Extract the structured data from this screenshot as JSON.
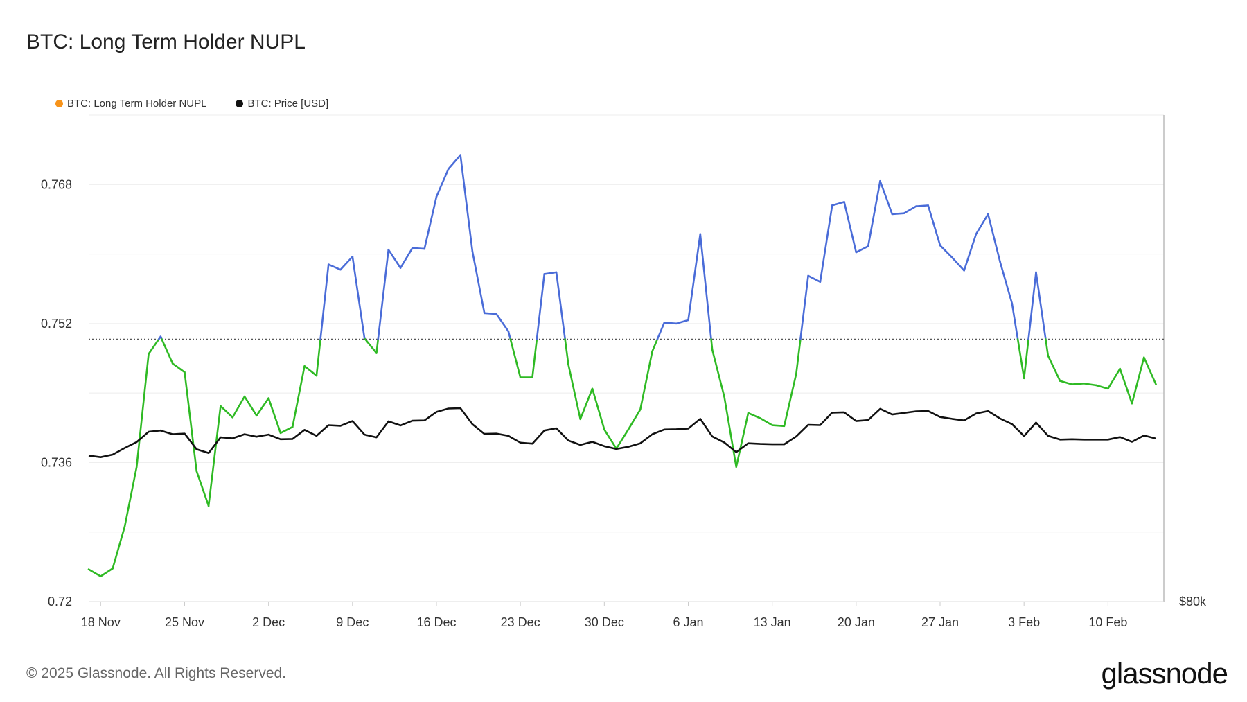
{
  "header": {
    "title": "BTC: Long Term Holder NUPL"
  },
  "footer": {
    "copyright": "© 2025 Glassnode. All Rights Reserved.",
    "brand": "glassnode"
  },
  "colors": {
    "nupl_above": "#4a6cd8",
    "nupl_below": "#2fba24",
    "price": "#111111",
    "legend_nupl": "#f7931a",
    "legend_price": "#111111"
  },
  "chart_data": {
    "type": "line",
    "title": "BTC: Long Term Holder NUPL",
    "legend": [
      {
        "name": "BTC: Long Term Holder NUPL",
        "color": "#f7931a"
      },
      {
        "name": "BTC: Price [USD]",
        "color": "#111111"
      }
    ],
    "x_ticks": [
      "18 Nov",
      "25 Nov",
      "2 Dec",
      "9 Dec",
      "16 Dec",
      "23 Dec",
      "30 Dec",
      "6 Jan",
      "13 Jan",
      "20 Jan",
      "27 Jan",
      "3 Feb",
      "10 Feb"
    ],
    "y_left_ticks": [
      "0.72",
      "0.736",
      "0.752",
      "0.768"
    ],
    "y_left_lim": [
      0.72,
      0.776
    ],
    "y_right_ticks": [
      "$80k"
    ],
    "reference_line": 0.7502,
    "x_start_day_label": "17 Nov",
    "series": [
      {
        "name": "BTC: Long Term Holder NUPL",
        "color_above": "#4a6cd8",
        "color_below": "#2fba24",
        "values": [
          0.7237,
          0.7229,
          0.7238,
          0.7286,
          0.7355,
          0.7485,
          0.7505,
          0.7474,
          0.7464,
          0.735,
          0.731,
          0.7425,
          0.7412,
          0.7436,
          0.7414,
          0.7434,
          0.7394,
          0.7401,
          0.7471,
          0.746,
          0.7588,
          0.7582,
          0.7597,
          0.7503,
          0.7486,
          0.7605,
          0.7584,
          0.7607,
          0.7606,
          0.7666,
          0.7698,
          0.7714,
          0.7603,
          0.7532,
          0.7531,
          0.7511,
          0.7458,
          0.7458,
          0.7577,
          0.7579,
          0.7473,
          0.741,
          0.7445,
          0.7398,
          0.7376,
          0.7398,
          0.7421,
          0.7488,
          0.7521,
          0.752,
          0.7524,
          0.7623,
          0.749,
          0.7436,
          0.7355,
          0.7417,
          0.7411,
          0.7403,
          0.7402,
          0.7462,
          0.7575,
          0.7568,
          0.7656,
          0.766,
          0.7602,
          0.7609,
          0.7684,
          0.7646,
          0.7647,
          0.7655,
          0.7656,
          0.761,
          0.7596,
          0.7581,
          0.7623,
          0.7646,
          0.7591,
          0.7543,
          0.7457,
          0.7579,
          0.7483,
          0.7454,
          0.745,
          0.7451,
          0.7449,
          0.7445,
          0.7468,
          0.7428,
          0.7481,
          0.745
        ]
      },
      {
        "name": "BTC: Price [USD]",
        "color": "#111111",
        "values": [
          91500,
          91000,
          91800,
          93900,
          95800,
          99100,
          99500,
          98300,
          98500,
          93500,
          92300,
          97300,
          97000,
          98300,
          97500,
          98200,
          96700,
          96800,
          99700,
          97800,
          101200,
          101000,
          102500,
          98200,
          97300,
          102400,
          101100,
          102600,
          102700,
          105400,
          106500,
          106600,
          101500,
          98400,
          98500,
          97800,
          95600,
          95300,
          99500,
          100200,
          96300,
          94900,
          95900,
          94500,
          93600,
          94300,
          95400,
          98300,
          99800,
          99900,
          100100,
          103200,
          97600,
          95700,
          92600,
          95400,
          95200,
          95100,
          95100,
          97600,
          101300,
          101200,
          105200,
          105300,
          102500,
          102800,
          106400,
          104600,
          105100,
          105600,
          105700,
          103800,
          103200,
          102700,
          104900,
          105700,
          103300,
          101500,
          97700,
          102000,
          97800,
          96600,
          96700,
          96600,
          96600,
          96600,
          97400,
          95900,
          97900,
          96900
        ]
      }
    ]
  }
}
